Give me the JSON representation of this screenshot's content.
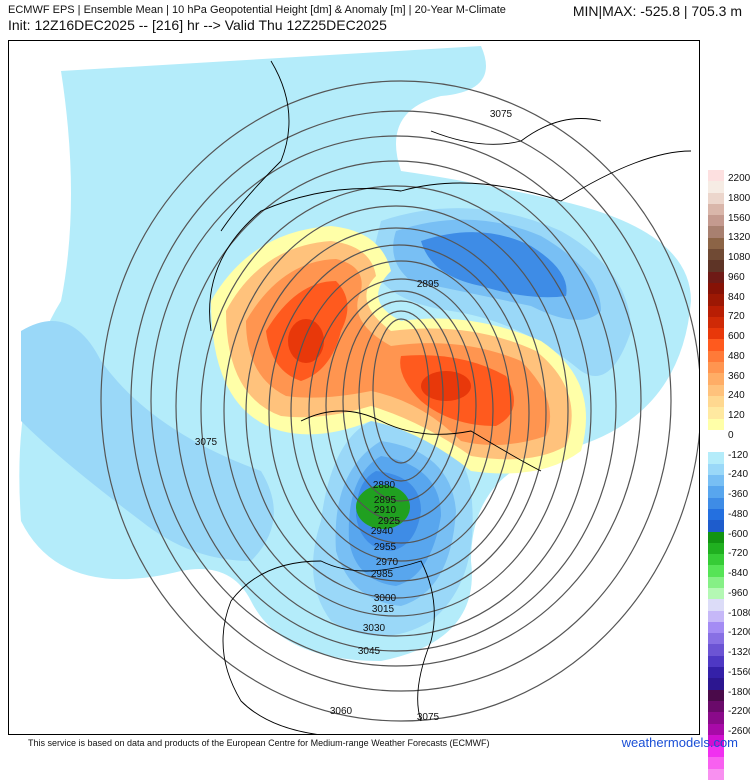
{
  "header": {
    "title": "ECMWF EPS | Ensemble Mean | 10 hPa Geopotential Height [dm] & Anomaly [m] | 20-Year M-Climate",
    "init": "Init: 12Z16DEC2025 -- [216] hr --> Valid Thu 12Z25DEC2025",
    "minmax": "MIN|MAX: -525.8 | 705.3 m"
  },
  "colorbar": {
    "labels": [
      "2200",
      "1800",
      "1560",
      "1320",
      "1080",
      "960",
      "840",
      "720",
      "600",
      "480",
      "360",
      "240",
      "120",
      "0",
      "-120",
      "-240",
      "-360",
      "-480",
      "-600",
      "-720",
      "-840",
      "-960",
      "-1080",
      "-1200",
      "-1320",
      "-1560",
      "-1800",
      "-2200",
      "-2600"
    ],
    "colors": [
      "#fde0e0",
      "#f6ece4",
      "#ecd6cc",
      "#d9b6aa",
      "#c49a8f",
      "#a88070",
      "#8c6446",
      "#704a34",
      "#5e3426",
      "#6e1a16",
      "#861206",
      "#9c1804",
      "#b81e04",
      "#cf2a06",
      "#e8380a",
      "#ff5a1e",
      "#ff7a38",
      "#ff9550",
      "#ffad66",
      "#ffc27c",
      "#ffd890",
      "#ffe9a0",
      "#ffffa8",
      "#ffffff",
      "#ffffff",
      "#b4ecfa",
      "#9ad8f8",
      "#78bff4",
      "#58a6ee",
      "#3e8ce6",
      "#2470e0",
      "#1e5ccc",
      "#129412",
      "#20b020",
      "#36cc36",
      "#56e456",
      "#86f086",
      "#b4f8b4",
      "#dcdcf8",
      "#c6b8f8",
      "#a48cf4",
      "#8870e4",
      "#6c54d4",
      "#4e38c4",
      "#3420a8",
      "#2c1690",
      "#4a0a4a",
      "#6a0a6a",
      "#8a0a8a",
      "#a80aa8",
      "#d010d0",
      "#f030f0",
      "#f860f0",
      "#f890f0"
    ]
  },
  "contour_labels": [
    "3075",
    "2895",
    "3075",
    "2880",
    "2895",
    "2910",
    "2925",
    "2940",
    "2955",
    "2970",
    "2985",
    "3000",
    "3015",
    "3030",
    "3045",
    "3060",
    "3075"
  ],
  "footer": {
    "credit": "This service is based on data and products of the European Centre for Medium-range Weather Forecasts (ECMWF)",
    "brand": "weathermodels.com"
  }
}
